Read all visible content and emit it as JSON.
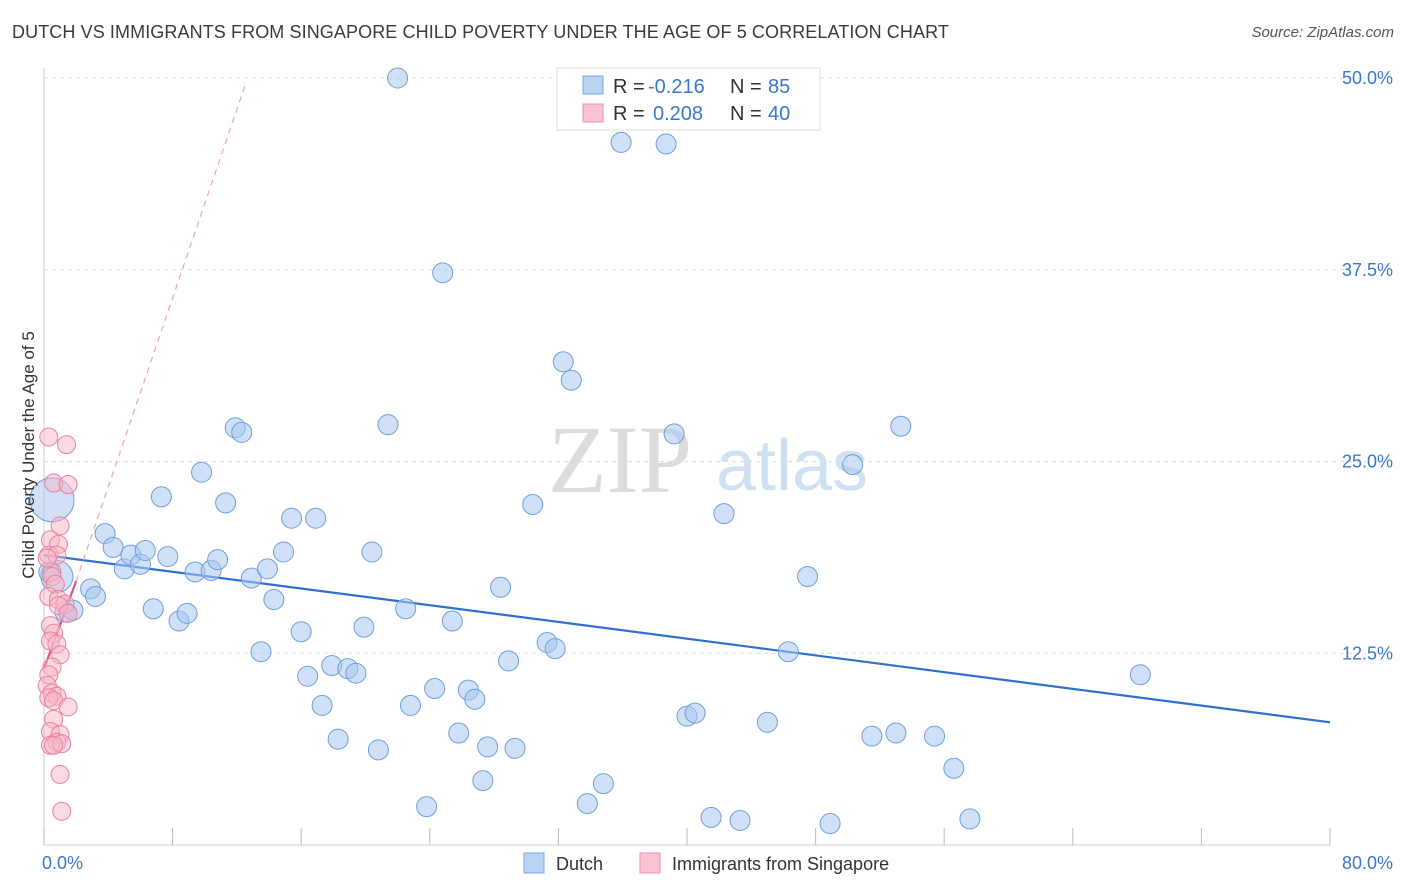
{
  "title": "DUTCH VS IMMIGRANTS FROM SINGAPORE CHILD POVERTY UNDER THE AGE OF 5 CORRELATION CHART",
  "source": "Source: ZipAtlas.com",
  "watermark": {
    "zip": "ZIP",
    "atlas": "atlas"
  },
  "colors": {
    "dutch_fill": "#a9c8f0",
    "dutch_stroke": "#6f9fd8",
    "dutch_line": "#2f6fd0",
    "sing_fill": "#f7b6c8",
    "sing_stroke": "#e8819f",
    "sing_line": "#e0508a",
    "tick_text": "#3a78c9",
    "grid": "#dddddd"
  },
  "legend": {
    "r_label": "R =",
    "n_label": "N =",
    "dutch": {
      "r": "-0.216",
      "n": "85"
    },
    "singapore": {
      "r": "0.208",
      "n": "40"
    }
  },
  "chart_data": {
    "type": "scatter",
    "xlabel": "",
    "ylabel": "Child Poverty Under the Age of 5",
    "xlim": [
      0,
      80
    ],
    "ylim": [
      0,
      50
    ],
    "x_tick_labels": [
      "0.0%",
      "80.0%"
    ],
    "y_ticks": [
      12.5,
      25.0,
      37.5,
      50.0
    ],
    "y_tick_labels": [
      "12.5%",
      "25.0%",
      "37.5%",
      "50.0%"
    ],
    "grid": true,
    "series": [
      {
        "name": "Dutch",
        "trend": {
          "x": [
            0,
            80
          ],
          "y": [
            18.9,
            8.0
          ],
          "style": "solid"
        },
        "points": [
          [
            0.5,
            22.5,
            22
          ],
          [
            0.8,
            17.5,
            16
          ],
          [
            1.3,
            15.2,
            10
          ],
          [
            1.8,
            15.3,
            10
          ],
          [
            2.9,
            16.7,
            10
          ],
          [
            3.2,
            16.2,
            10
          ],
          [
            3.8,
            20.3,
            10
          ],
          [
            4.3,
            19.4,
            10
          ],
          [
            5.0,
            18.0,
            10
          ],
          [
            5.4,
            18.9,
            10
          ],
          [
            6.0,
            18.3,
            10
          ],
          [
            6.3,
            19.2,
            10
          ],
          [
            6.8,
            15.4,
            10
          ],
          [
            7.3,
            22.7,
            10
          ],
          [
            7.7,
            18.8,
            10
          ],
          [
            8.4,
            14.6,
            10
          ],
          [
            8.9,
            15.1,
            10
          ],
          [
            9.4,
            17.8,
            10
          ],
          [
            9.8,
            24.3,
            10
          ],
          [
            10.4,
            17.9,
            10
          ],
          [
            10.8,
            18.6,
            10
          ],
          [
            11.3,
            22.3,
            10
          ],
          [
            11.9,
            27.2,
            10
          ],
          [
            12.3,
            26.9,
            10
          ],
          [
            12.9,
            17.4,
            10
          ],
          [
            13.5,
            12.6,
            10
          ],
          [
            13.9,
            18.0,
            10
          ],
          [
            14.3,
            16.0,
            10
          ],
          [
            14.9,
            19.1,
            10
          ],
          [
            15.4,
            21.3,
            10
          ],
          [
            16.0,
            13.9,
            10
          ],
          [
            16.4,
            11.0,
            10
          ],
          [
            16.9,
            21.3,
            10
          ],
          [
            17.3,
            9.1,
            10
          ],
          [
            17.9,
            11.7,
            10
          ],
          [
            18.3,
            6.9,
            10
          ],
          [
            18.9,
            11.5,
            10
          ],
          [
            19.4,
            11.2,
            10
          ],
          [
            19.9,
            14.2,
            10
          ],
          [
            20.4,
            19.1,
            10
          ],
          [
            20.8,
            6.2,
            10
          ],
          [
            21.4,
            27.4,
            10
          ],
          [
            22.0,
            50.0,
            10
          ],
          [
            22.5,
            15.4,
            10
          ],
          [
            22.8,
            9.1,
            10
          ],
          [
            23.8,
            2.5,
            10
          ],
          [
            24.3,
            10.2,
            10
          ],
          [
            24.8,
            37.3,
            10
          ],
          [
            25.4,
            14.6,
            10
          ],
          [
            25.8,
            7.3,
            10
          ],
          [
            26.4,
            10.1,
            10
          ],
          [
            26.8,
            9.5,
            10
          ],
          [
            27.3,
            4.2,
            10
          ],
          [
            27.6,
            6.4,
            10
          ],
          [
            28.4,
            16.8,
            10
          ],
          [
            28.9,
            12.0,
            10
          ],
          [
            29.3,
            6.3,
            10
          ],
          [
            30.4,
            22.2,
            10
          ],
          [
            31.3,
            13.2,
            10
          ],
          [
            31.8,
            12.8,
            10
          ],
          [
            32.3,
            31.5,
            10
          ],
          [
            32.8,
            30.3,
            10
          ],
          [
            33.8,
            2.7,
            10
          ],
          [
            34.8,
            4.0,
            10
          ],
          [
            35.9,
            45.8,
            10
          ],
          [
            38.7,
            45.7,
            10
          ],
          [
            39.2,
            26.8,
            10
          ],
          [
            40.0,
            8.4,
            10
          ],
          [
            40.5,
            8.6,
            10
          ],
          [
            41.5,
            1.8,
            10
          ],
          [
            42.3,
            21.6,
            10
          ],
          [
            43.3,
            1.6,
            10
          ],
          [
            45.0,
            8.0,
            10
          ],
          [
            46.3,
            12.6,
            10
          ],
          [
            47.5,
            17.5,
            10
          ],
          [
            48.9,
            1.4,
            10
          ],
          [
            50.3,
            24.8,
            10
          ],
          [
            51.5,
            7.1,
            10
          ],
          [
            53.0,
            7.3,
            10
          ],
          [
            53.3,
            27.3,
            10
          ],
          [
            55.4,
            7.1,
            10
          ],
          [
            56.6,
            5.0,
            10
          ],
          [
            57.6,
            1.7,
            10
          ],
          [
            68.2,
            11.1,
            10
          ],
          [
            0.3,
            17.8,
            10
          ]
        ]
      },
      {
        "name": "Immigrants from Singapore",
        "trend": {
          "x": [
            0,
            2
          ],
          "y": [
            11.5,
            17.2
          ],
          "style": "solid"
        },
        "trend_ext": {
          "x": [
            2,
            12.5
          ],
          "y": [
            17.2,
            49.5
          ],
          "style": "dashed"
        },
        "points": [
          [
            0.3,
            26.6,
            9
          ],
          [
            1.4,
            26.1,
            9
          ],
          [
            0.6,
            23.6,
            9
          ],
          [
            1.5,
            23.5,
            9
          ],
          [
            1.0,
            20.8,
            9
          ],
          [
            0.4,
            19.9,
            9
          ],
          [
            0.9,
            19.6,
            9
          ],
          [
            0.3,
            18.9,
            9
          ],
          [
            0.8,
            18.9,
            9
          ],
          [
            0.5,
            17.8,
            9
          ],
          [
            0.5,
            17.5,
            9
          ],
          [
            0.7,
            17.0,
            9
          ],
          [
            0.3,
            16.2,
            9
          ],
          [
            0.9,
            16.0,
            9
          ],
          [
            1.3,
            15.7,
            9
          ],
          [
            0.9,
            15.6,
            9
          ],
          [
            1.5,
            15.1,
            9
          ],
          [
            0.4,
            14.3,
            9
          ],
          [
            0.6,
            13.8,
            9
          ],
          [
            0.4,
            13.3,
            9
          ],
          [
            0.8,
            13.1,
            9
          ],
          [
            1.0,
            12.4,
            9
          ],
          [
            0.5,
            11.6,
            9
          ],
          [
            0.3,
            11.1,
            9
          ],
          [
            0.2,
            10.4,
            9
          ],
          [
            0.5,
            9.9,
            9
          ],
          [
            0.8,
            9.7,
            9
          ],
          [
            0.3,
            9.6,
            9
          ],
          [
            0.6,
            9.4,
            9
          ],
          [
            1.5,
            9.0,
            9
          ],
          [
            0.6,
            8.2,
            9
          ],
          [
            0.4,
            7.4,
            9
          ],
          [
            1.0,
            7.2,
            9
          ],
          [
            0.8,
            6.7,
            9
          ],
          [
            0.4,
            6.5,
            9
          ],
          [
            1.1,
            6.6,
            9
          ],
          [
            0.6,
            6.5,
            9
          ],
          [
            1.0,
            4.6,
            9
          ],
          [
            1.1,
            2.2,
            9
          ],
          [
            0.2,
            18.7,
            9
          ]
        ]
      }
    ]
  },
  "bottom_legend": {
    "dutch": "Dutch",
    "singapore": "Immigrants from Singapore"
  }
}
